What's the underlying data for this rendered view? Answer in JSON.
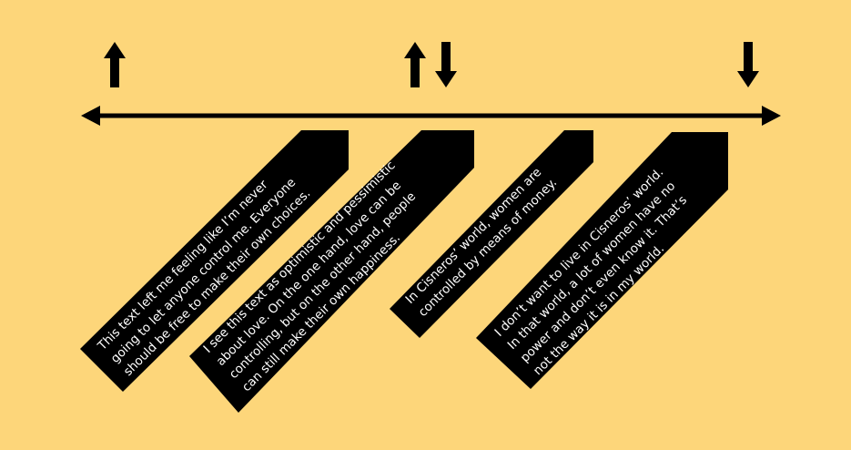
{
  "colors": {
    "background": "#FDD67A",
    "ink": "#000000",
    "label_text": "#FFFFFF"
  },
  "arrows": [
    {
      "name": "up-arrow-icon"
    },
    {
      "name": "up-arrow-icon"
    },
    {
      "name": "down-arrow-icon"
    },
    {
      "name": "down-arrow-icon"
    }
  ],
  "labels": [
    {
      "lines": [
        "This text left me feeling like I’m never",
        "going to let anyone control me. Everyone",
        "should be free to make their own choices."
      ]
    },
    {
      "lines": [
        "I see this text as optimistic and pessimistic",
        "about love. On the one hand, love can be",
        "controlling, but on the other hand, people",
        "can still make their own happiness."
      ]
    },
    {
      "lines": [
        "In Cisneros’ world, women are",
        "controlled by means of money."
      ]
    },
    {
      "lines": [
        "I don’t want to live in Cisneros’ world.",
        "In that world, a lot of women have no",
        "power and don’t even know it. That’s",
        "not the way it is in my world."
      ]
    }
  ]
}
